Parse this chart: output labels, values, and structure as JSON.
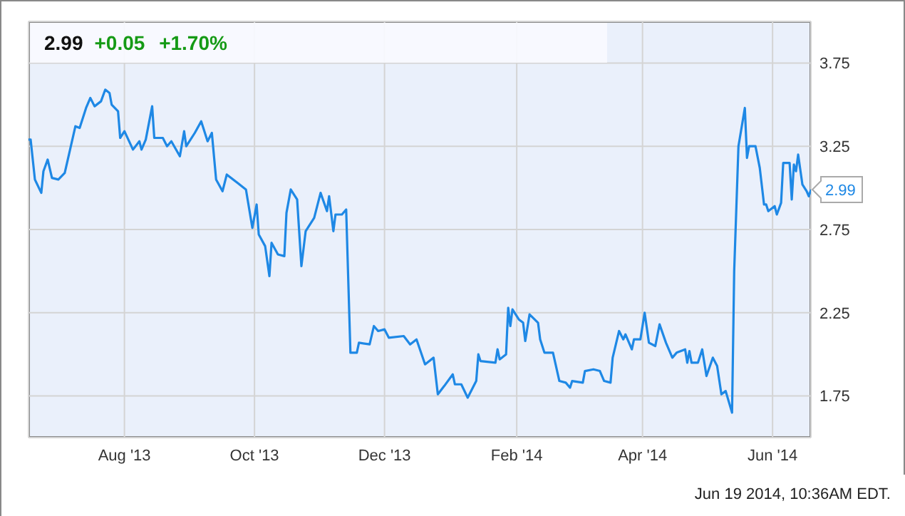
{
  "chart_data": {
    "type": "line",
    "title": "2.99",
    "subtitle": "+0.05 +1.70%",
    "annotations": [
      {
        "text": "2.99",
        "x": "2014-06-19",
        "y": 2.99
      },
      "Jun 19 2014, 10:36AM EDT."
    ],
    "x": [
      "2013-06-17",
      "2013-06-18",
      "2013-06-20",
      "2013-06-23",
      "2013-06-24",
      "2013-06-26",
      "2013-06-28",
      "2013-07-01",
      "2013-07-04",
      "2013-07-09",
      "2013-07-11",
      "2013-07-14",
      "2013-07-16",
      "2013-07-18",
      "2013-07-21",
      "2013-07-23",
      "2013-07-25",
      "2013-07-26",
      "2013-07-29",
      "2013-07-30",
      "2013-08-01",
      "2013-08-05",
      "2013-08-08",
      "2013-08-09",
      "2013-08-11",
      "2013-08-14",
      "2013-08-15",
      "2013-08-19",
      "2013-08-21",
      "2013-08-23",
      "2013-08-27",
      "2013-08-29",
      "2013-08-30",
      "2013-09-03",
      "2013-09-06",
      "2013-09-09",
      "2013-09-11",
      "2013-09-13",
      "2013-09-16",
      "2013-09-18",
      "2013-09-23",
      "2013-09-27",
      "2013-09-30",
      "2013-10-02",
      "2013-10-03",
      "2013-10-06",
      "2013-10-08",
      "2013-10-09",
      "2013-10-12",
      "2013-10-15",
      "2013-10-16",
      "2013-10-18",
      "2013-10-21",
      "2013-10-23",
      "2013-10-25",
      "2013-10-29",
      "2013-11-01",
      "2013-11-04",
      "2013-11-05",
      "2013-11-07",
      "2013-11-08",
      "2013-11-11",
      "2013-11-13",
      "2013-11-15",
      "2013-11-18",
      "2013-11-19",
      "2013-11-24",
      "2013-11-26",
      "2013-11-28",
      "2013-12-01",
      "2013-12-03",
      "2013-12-10",
      "2013-12-13",
      "2013-12-16",
      "2013-12-20",
      "2013-12-24",
      "2013-12-26",
      "2013-12-29",
      "2014-01-02",
      "2014-01-03",
      "2014-01-06",
      "2014-01-09",
      "2014-01-13",
      "2014-01-14",
      "2014-01-15",
      "2014-01-22",
      "2014-01-23",
      "2014-01-24",
      "2014-01-27",
      "2014-01-28",
      "2014-01-29",
      "2014-01-30",
      "2014-02-02",
      "2014-02-04",
      "2014-02-05",
      "2014-02-07",
      "2014-02-11",
      "2014-02-12",
      "2014-02-14",
      "2014-02-18",
      "2014-02-21",
      "2014-02-24",
      "2014-02-26",
      "2014-02-27",
      "2014-03-04",
      "2014-03-05",
      "2014-03-09",
      "2014-03-12",
      "2014-03-14",
      "2014-03-17",
      "2014-03-18",
      "2014-03-21",
      "2014-03-23",
      "2014-03-24",
      "2014-03-27",
      "2014-03-28",
      "2014-03-31",
      "2014-04-02",
      "2014-04-04",
      "2014-04-07",
      "2014-04-09",
      "2014-04-12",
      "2014-04-15",
      "2014-04-17",
      "2014-04-21",
      "2014-04-22",
      "2014-04-23",
      "2014-04-24",
      "2014-04-27",
      "2014-04-29",
      "2014-05-01",
      "2014-05-04",
      "2014-05-06",
      "2014-05-08",
      "2014-05-10",
      "2014-05-13",
      "2014-05-14",
      "2014-05-16",
      "2014-05-19",
      "2014-05-20",
      "2014-05-21",
      "2014-05-24",
      "2014-05-26",
      "2014-05-28",
      "2014-05-29",
      "2014-05-30",
      "2014-06-02",
      "2014-06-03",
      "2014-06-05",
      "2014-06-06",
      "2014-06-09",
      "2014-06-10",
      "2014-06-11",
      "2014-06-12",
      "2014-06-13",
      "2014-06-15",
      "2014-06-17",
      "2014-06-18",
      "2014-06-19"
    ],
    "series": [
      {
        "color": "#1e88e5",
        "values": [
          3.29,
          3.29,
          3.05,
          2.97,
          3.1,
          3.17,
          3.06,
          3.05,
          3.09,
          3.37,
          3.36,
          3.48,
          3.54,
          3.49,
          3.52,
          3.59,
          3.57,
          3.5,
          3.46,
          3.3,
          3.34,
          3.23,
          3.28,
          3.23,
          3.29,
          3.49,
          3.3,
          3.3,
          3.25,
          3.28,
          3.19,
          3.34,
          3.25,
          3.33,
          3.4,
          3.28,
          3.33,
          3.05,
          2.98,
          3.08,
          3.03,
          2.99,
          2.76,
          2.9,
          2.72,
          2.65,
          2.47,
          2.67,
          2.6,
          2.59,
          2.85,
          2.99,
          2.93,
          2.53,
          2.74,
          2.82,
          2.97,
          2.86,
          2.95,
          2.74,
          2.84,
          2.84,
          2.87,
          2.01,
          2.01,
          2.07,
          2.06,
          2.17,
          2.14,
          2.15,
          2.1,
          2.11,
          2.06,
          2.09,
          1.94,
          1.98,
          1.76,
          1.81,
          1.88,
          1.82,
          1.82,
          1.74,
          1.84,
          2.0,
          1.96,
          1.95,
          2.03,
          1.97,
          2.0,
          2.28,
          2.17,
          2.27,
          2.21,
          2.19,
          2.08,
          2.24,
          2.19,
          2.09,
          2.01,
          2.01,
          1.84,
          1.83,
          1.8,
          1.84,
          1.83,
          1.9,
          1.91,
          1.9,
          1.84,
          1.83,
          1.98,
          2.14,
          2.09,
          2.12,
          2.03,
          2.09,
          2.09,
          2.25,
          2.07,
          2.05,
          2.18,
          2.07,
          1.98,
          2.01,
          2.03,
          1.95,
          2.02,
          1.95,
          1.95,
          2.03,
          1.87,
          1.98,
          1.93,
          1.76,
          1.78,
          1.65,
          2.5,
          3.25,
          3.48,
          3.18,
          3.25,
          3.25,
          3.12,
          2.9,
          2.9,
          2.86,
          2.89,
          2.84,
          2.91,
          3.15,
          3.15,
          2.93,
          3.14,
          3.1,
          3.2,
          3.02,
          2.98,
          2.95,
          2.99
        ]
      }
    ],
    "xlim": [
      "2013-06-17",
      "2014-06-19"
    ],
    "xticks": [
      {
        "value": "2013-08-01",
        "label": "Aug '13"
      },
      {
        "value": "2013-10-01",
        "label": "Oct '13"
      },
      {
        "value": "2013-12-01",
        "label": "Dec '13"
      },
      {
        "value": "2014-02-01",
        "label": "Feb '14"
      },
      {
        "value": "2014-04-01",
        "label": "Apr '14"
      },
      {
        "value": "2014-06-01",
        "label": "Jun '14"
      }
    ],
    "ylim": [
      1.5,
      4.0
    ],
    "yticks": [
      1.75,
      2.25,
      2.75,
      3.25,
      3.75
    ],
    "grid": true,
    "marker": "none",
    "line_style": "solid"
  }
}
